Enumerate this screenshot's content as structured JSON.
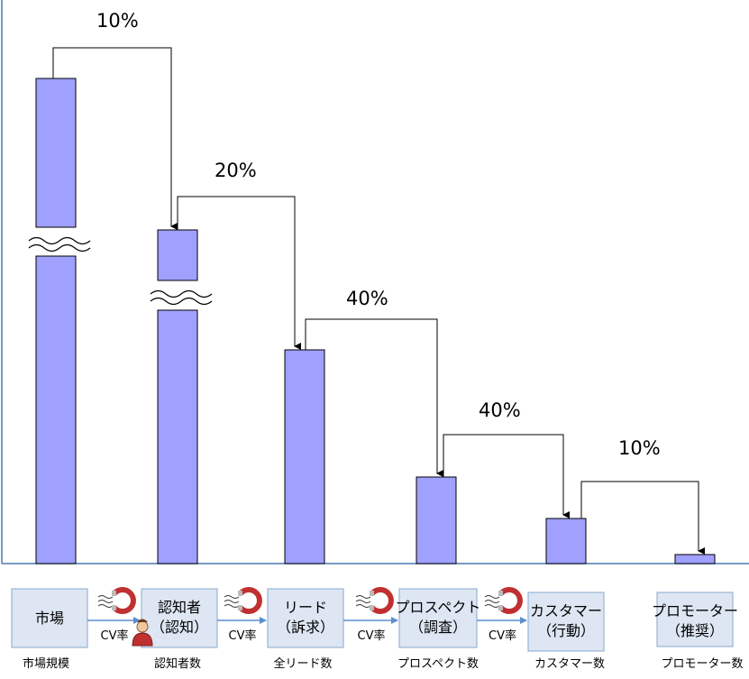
{
  "chart_data": {
    "type": "bar",
    "bars": [
      {
        "relative_value": 100,
        "axis_break": true
      },
      {
        "relative_value": 78,
        "axis_break": true
      },
      {
        "relative_value": 49
      },
      {
        "relative_value": 20
      },
      {
        "relative_value": 10
      },
      {
        "relative_value": 2
      }
    ],
    "conversion_rates": [
      "10%",
      "20%",
      "40%",
      "40%",
      "10%"
    ],
    "stages": [
      {
        "box_line1": "市場",
        "box_line2": "",
        "caption": "市場規模"
      },
      {
        "box_line1": "認知者",
        "box_line2": "（認知）",
        "caption": "認知者数"
      },
      {
        "box_line1": "リード",
        "box_line2": "（訴求）",
        "caption": "全リード数"
      },
      {
        "box_line1": "プロスペクト",
        "box_line2": "（調査）",
        "caption": "プロスペクト数"
      },
      {
        "box_line1": "カスタマー",
        "box_line2": "（行動）",
        "caption": "カスタマー数"
      },
      {
        "box_line1": "プロモーター",
        "box_line2": "（推奨）",
        "caption": "プロモーター数"
      }
    ],
    "cv_label": "CV率",
    "colors": {
      "bar_fill": "#a0a0ff",
      "bar_stroke": "#000000",
      "box_fill": "#dde6f2",
      "box_stroke": "#9ab3d4",
      "axis": "#4a7ab0",
      "arrow": "#5b8fd0"
    },
    "icons": [
      "magnet-icon",
      "person-icon"
    ]
  }
}
